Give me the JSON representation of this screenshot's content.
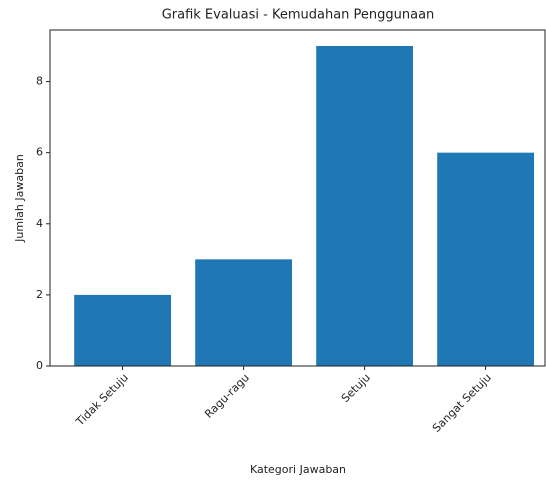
{
  "chart_data": {
    "type": "bar",
    "title": "Grafik Evaluasi - Kemudahan Penggunaan",
    "xlabel": "Kategori Jawaban",
    "ylabel": "Jumlah Jawaban",
    "categories": [
      "Tidak Setuju",
      "Ragu-ragu",
      "Setuju",
      "Sangat Setuju"
    ],
    "values": [
      2,
      3,
      9,
      6
    ],
    "color": "#1f77b4",
    "ylim": [
      0,
      9.45
    ],
    "yticks": [
      0,
      2,
      4,
      6,
      8
    ],
    "grid": false
  }
}
